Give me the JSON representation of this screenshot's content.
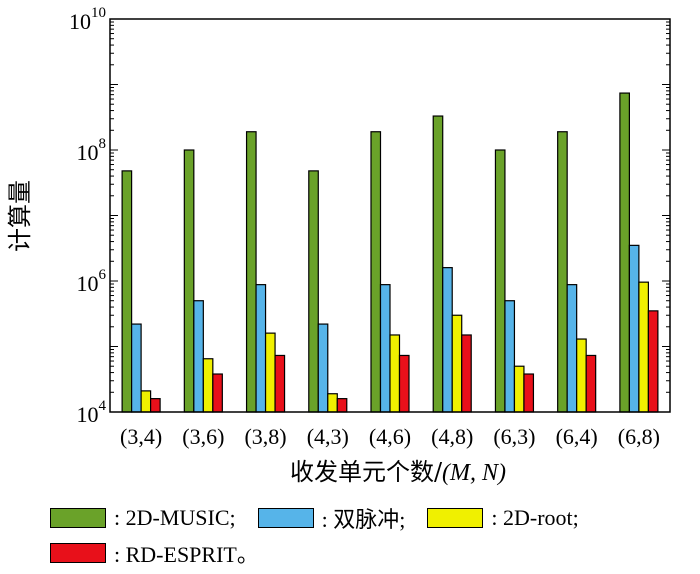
{
  "chart_data": {
    "type": "bar",
    "yscale": "log",
    "ylim": [
      10000,
      10000000000
    ],
    "ylabel": "计算量",
    "xlabel_text": "收发单元个数/",
    "xlabel_vars": "(M, N)",
    "y_ticks": [
      {
        "base": "10",
        "exp": "4",
        "value": 10000
      },
      {
        "base": "10",
        "exp": "6",
        "value": 1000000
      },
      {
        "base": "10",
        "exp": "8",
        "value": 100000000
      },
      {
        "base": "10",
        "exp": "10",
        "value": 10000000000
      }
    ],
    "categories": [
      "(3,4)",
      "(3,6)",
      "(3,8)",
      "(4,3)",
      "(4,6)",
      "(4,8)",
      "(6,3)",
      "(6,4)",
      "(6,8)"
    ],
    "series": [
      {
        "name": "2D-MUSIC",
        "color": "#6aa229",
        "values": [
          48000000,
          100000000,
          190000000,
          48000000,
          190000000,
          330000000,
          100000000,
          190000000,
          740000000
        ]
      },
      {
        "name": "双脉冲",
        "color": "#56b4e9",
        "values": [
          220000,
          500000,
          880000,
          220000,
          880000,
          1600000,
          500000,
          880000,
          3500000
        ]
      },
      {
        "name": "2D-root",
        "color": "#f0f000",
        "values": [
          21000,
          65000,
          160000,
          19000,
          150000,
          300000,
          50000,
          130000,
          960000
        ]
      },
      {
        "name": "RD-ESPRIT",
        "color": "#e8101a",
        "values": [
          16000,
          38000,
          73000,
          16000,
          73000,
          150000,
          38000,
          73000,
          350000
        ]
      }
    ],
    "legend": {
      "placement": "bottom",
      "prefix": ": ",
      "items": [
        {
          "label": "2D-MUSIC;"
        },
        {
          "label": "双脉冲;"
        },
        {
          "label": "2D-root;"
        },
        {
          "label": "RD-ESPRIT。"
        }
      ]
    }
  }
}
